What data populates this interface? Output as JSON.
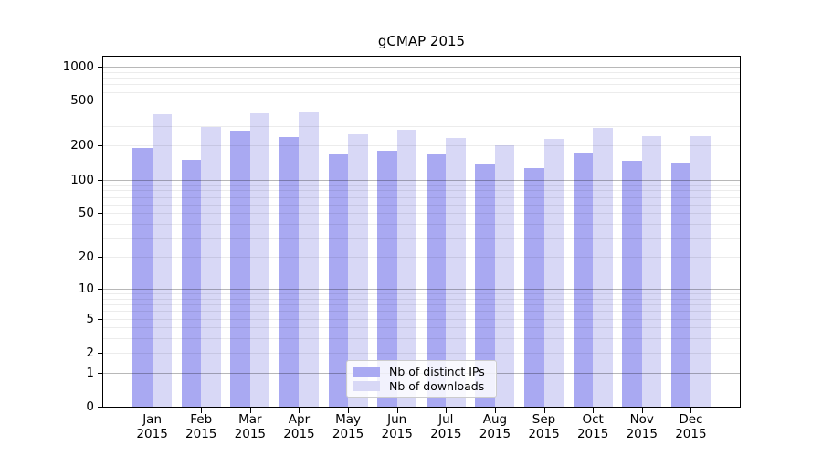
{
  "chart_data": {
    "type": "bar",
    "title": "gCMAP 2015",
    "categories": [
      "Jan",
      "Feb",
      "Mar",
      "Apr",
      "May",
      "Jun",
      "Jul",
      "Aug",
      "Sep",
      "Oct",
      "Nov",
      "Dec"
    ],
    "x_tick_year": "2015",
    "series": [
      {
        "name": "Nb of distinct IPs",
        "color": "#a9a9f2",
        "values": [
          190,
          150,
          271,
          240,
          170,
          181,
          168,
          138,
          127,
          175,
          147,
          142
        ]
      },
      {
        "name": "Nb of downloads",
        "color": "#d8d8f6",
        "values": [
          381,
          291,
          387,
          397,
          254,
          277,
          234,
          203,
          229,
          286,
          243,
          245
        ]
      }
    ],
    "y_scale": "log10(value+1)",
    "y_ticks": [
      0,
      1,
      2,
      5,
      10,
      20,
      50,
      100,
      200,
      500,
      1000
    ],
    "y_axis_max": 1228,
    "major_grid_values": [
      1,
      10,
      100,
      1000
    ],
    "grid": "on",
    "legend_position": "lower center",
    "axis_color": "#000000"
  }
}
